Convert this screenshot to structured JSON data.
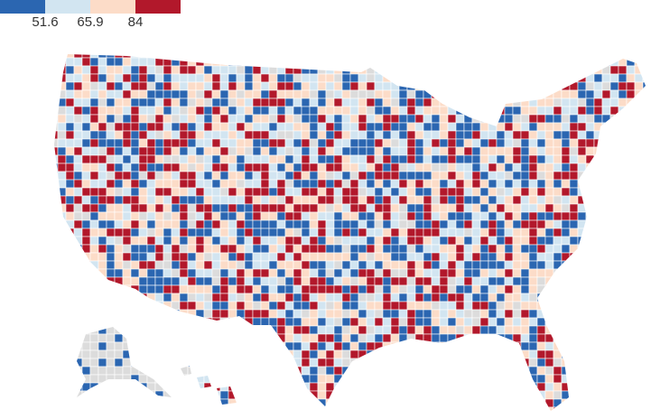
{
  "legend": {
    "colors": [
      "#2b66b1",
      "#d2e5f1",
      "#fcdcc8",
      "#b2182b"
    ],
    "thresholds": [
      51.6,
      65.9,
      84
    ]
  }
}
